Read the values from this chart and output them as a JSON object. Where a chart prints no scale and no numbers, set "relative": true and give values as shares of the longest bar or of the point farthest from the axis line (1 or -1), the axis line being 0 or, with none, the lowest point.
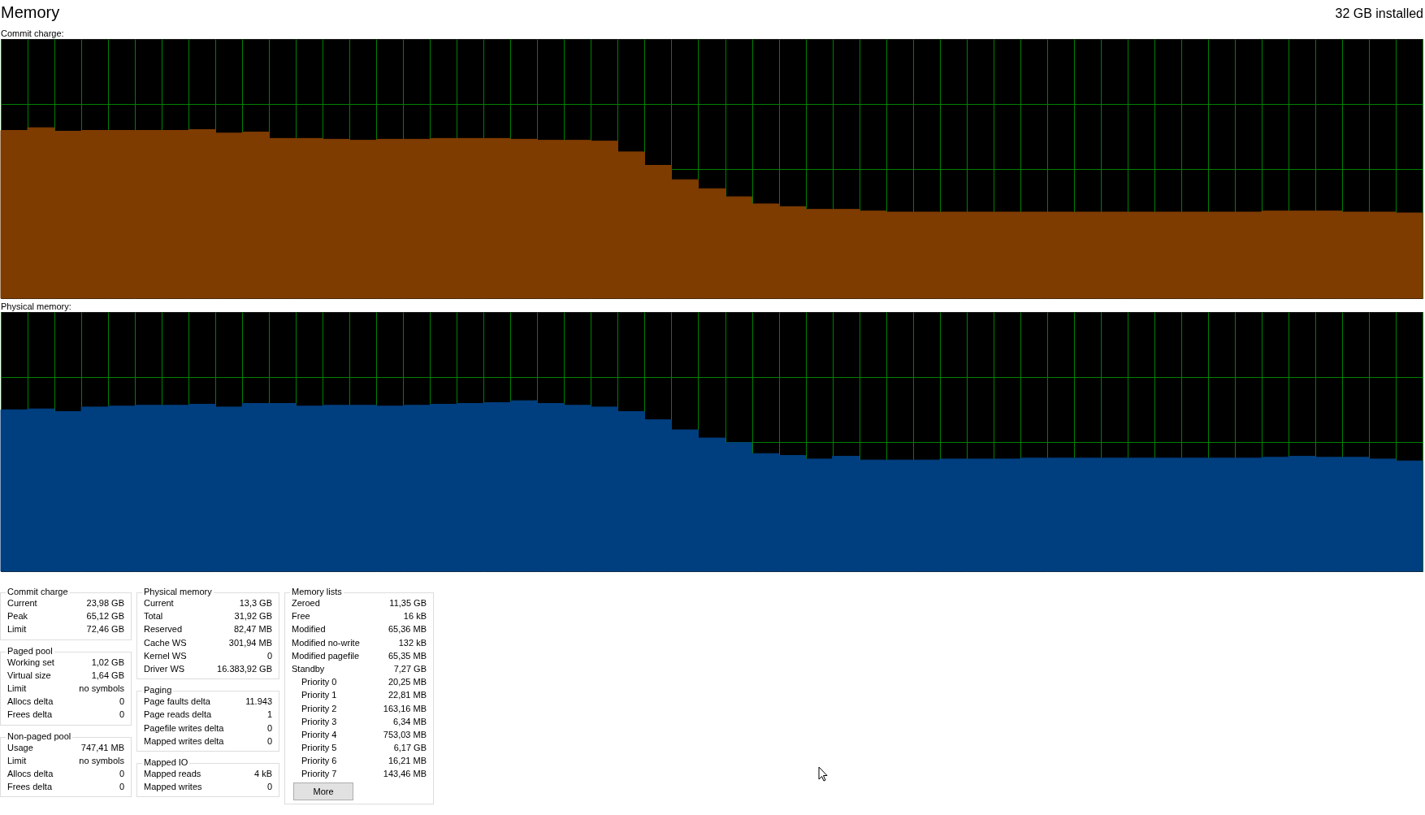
{
  "chart_data": [
    {
      "type": "other",
      "title": "Memory",
      "annotations": [
        "32 GB installed"
      ]
    },
    {
      "type": "area",
      "title": "Commit charge:",
      "relative": true,
      "grid": true,
      "color": "#7f3c00",
      "categories": [
        null,
        null,
        null,
        null,
        null,
        null,
        null,
        null,
        null,
        null,
        null,
        null,
        null,
        null,
        null,
        null,
        null,
        null,
        null,
        null,
        null,
        null,
        null,
        null,
        null,
        null,
        null,
        null,
        null,
        null,
        null,
        null,
        null,
        null,
        null,
        null,
        null,
        null,
        null,
        null,
        null,
        null,
        null,
        null,
        null,
        null,
        null,
        null,
        null,
        null,
        null,
        null,
        null,
        null
      ],
      "values": [
        0.984,
        1,
        0.979,
        0.984,
        0.984,
        0.984,
        0.984,
        0.989,
        0.968,
        0.974,
        0.937,
        0.937,
        0.932,
        0.926,
        0.932,
        0.932,
        0.937,
        0.937,
        0.937,
        0.932,
        0.926,
        0.926,
        0.921,
        0.858,
        0.779,
        0.695,
        0.642,
        0.595,
        0.553,
        0.537,
        0.521,
        0.521,
        0.511,
        0.505,
        0.505,
        0.505,
        0.505,
        0.505,
        0.505,
        0.505,
        0.505,
        0.505,
        0.505,
        0.505,
        0.505,
        0.505,
        0.505,
        0.511,
        0.511,
        0.511,
        0.505,
        0.505,
        0.5,
        0.495
      ]
    },
    {
      "type": "area",
      "title": "Physical memory:",
      "relative": true,
      "grid": true,
      "color": "#003f7f",
      "categories": [
        null,
        null,
        null,
        null,
        null,
        null,
        null,
        null,
        null,
        null,
        null,
        null,
        null,
        null,
        null,
        null,
        null,
        null,
        null,
        null,
        null,
        null,
        null,
        null,
        null,
        null,
        null,
        null,
        null,
        null,
        null,
        null,
        null,
        null,
        null,
        null,
        null,
        null,
        null,
        null,
        null,
        null,
        null,
        null,
        null,
        null,
        null,
        null,
        null,
        null,
        null,
        null,
        null,
        null
      ],
      "values": [
        0.947,
        0.952,
        0.936,
        0.963,
        0.968,
        0.973,
        0.973,
        0.979,
        0.963,
        0.984,
        0.984,
        0.968,
        0.973,
        0.973,
        0.968,
        0.973,
        0.979,
        0.984,
        0.989,
        1,
        0.984,
        0.973,
        0.963,
        0.936,
        0.888,
        0.829,
        0.781,
        0.754,
        0.69,
        0.679,
        0.658,
        0.674,
        0.652,
        0.652,
        0.652,
        0.658,
        0.658,
        0.658,
        0.663,
        0.663,
        0.663,
        0.663,
        0.663,
        0.663,
        0.663,
        0.663,
        0.663,
        0.668,
        0.674,
        0.668,
        0.668,
        0.658,
        0.647,
        0.636
      ]
    },
    {
      "type": "other",
      "title": "Commit charge",
      "annotations": [
        "Current",
        "23,98 GB",
        "Peak",
        "65,12 GB",
        "Limit",
        "72,46 GB"
      ]
    },
    {
      "type": "other",
      "title": "Paged pool",
      "annotations": [
        "Working set",
        "1,02 GB",
        "Virtual size",
        "1,64 GB",
        "Limit",
        "no symbols",
        "Allocs delta",
        "0",
        "Frees delta",
        "0"
      ]
    },
    {
      "type": "other",
      "title": "Non-paged pool",
      "annotations": [
        "Usage",
        "747,41 MB",
        "Limit",
        "no symbols",
        "Allocs delta",
        "0",
        "Frees delta",
        "0"
      ]
    },
    {
      "type": "other",
      "title": "Physical memory",
      "annotations": [
        "Current",
        "13,3 GB",
        "Total",
        "31,92 GB",
        "Reserved",
        "82,47 MB",
        "Cache WS",
        "301,94 MB",
        "Kernel WS",
        "0",
        "Driver WS",
        "16.383,92 GB"
      ]
    },
    {
      "type": "other",
      "title": "Paging",
      "annotations": [
        "Page faults delta",
        "11.943",
        "Page reads delta",
        "1",
        "Pagefile writes delta",
        "0",
        "Mapped writes delta",
        "0"
      ]
    },
    {
      "type": "other",
      "title": "Mapped IO",
      "annotations": [
        "Mapped reads",
        "4 kB",
        "Mapped writes",
        "0"
      ]
    },
    {
      "type": "other",
      "title": "Memory lists",
      "annotations": [
        "Zeroed",
        "11,35 GB",
        "Free",
        "16 kB",
        "Modified",
        "65,36 MB",
        "Modified no-write",
        "132 kB",
        "Modified pagefile",
        "65,35 MB",
        "Standby",
        "7,27 GB",
        "Priority 0",
        "20,25 MB",
        "Priority 1",
        "22,81 MB",
        "Priority 2",
        "163,16 MB",
        "Priority 3",
        "6,34 MB",
        "Priority 4",
        "753,03 MB",
        "Priority 5",
        "6,17 GB",
        "Priority 6",
        "16,21 MB",
        "Priority 7",
        "143,46 MB",
        "More"
      ]
    }
  ]
}
